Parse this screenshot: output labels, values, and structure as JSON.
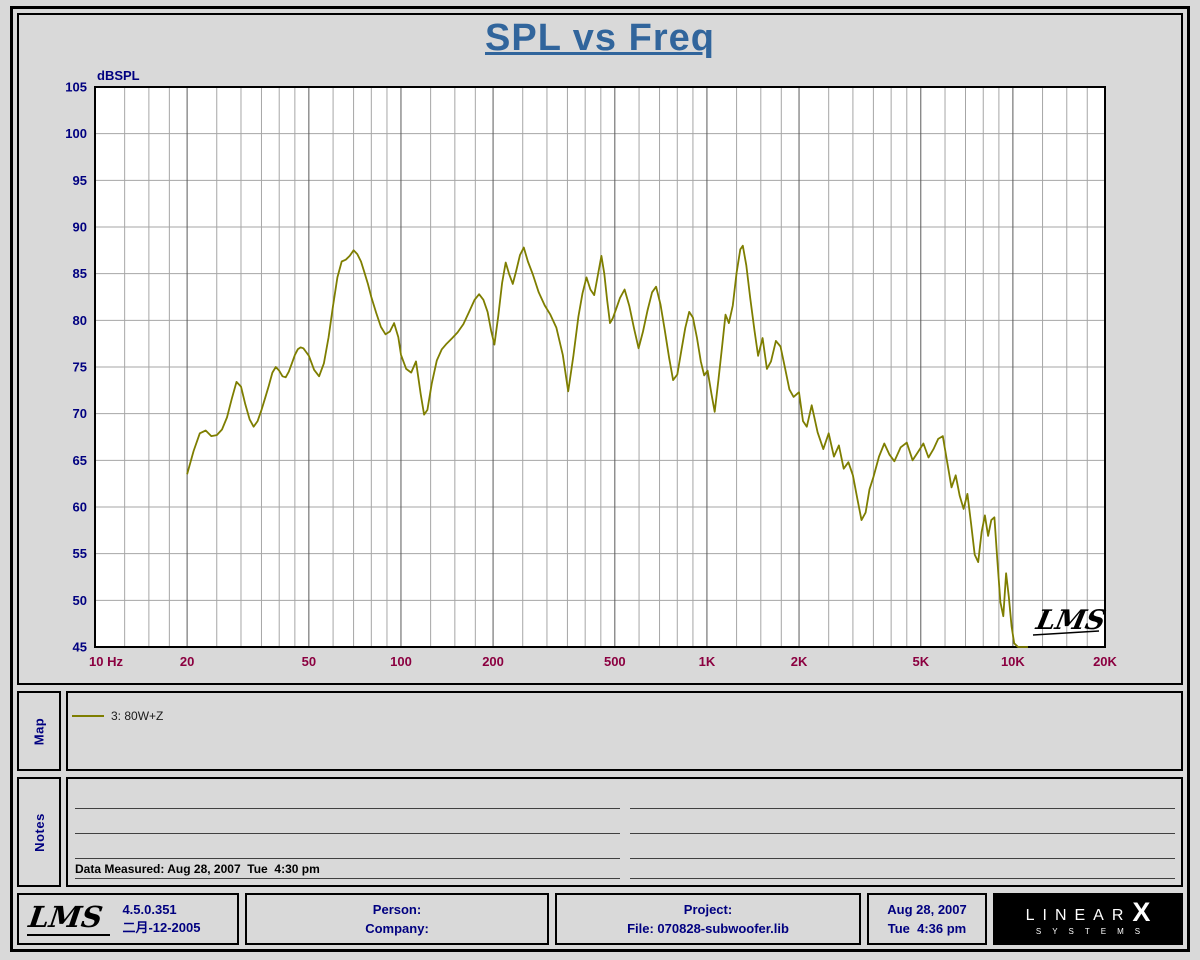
{
  "title": "SPL vs Freq",
  "colors": {
    "background": "#d9d9d9",
    "title_accent": "#31659c",
    "navy_text": "#000080",
    "freq_label": "#8b0040",
    "curve": "#7e7e00"
  },
  "chart_data": {
    "type": "line",
    "title": "SPL vs Freq",
    "ylabel": "dBSPL",
    "xlabel": "Hz",
    "x_scale": "log",
    "xlim": [
      10,
      20000
    ],
    "ylim": [
      45,
      105
    ],
    "y_tick_step": 5,
    "grid": "on",
    "legend_position": "map-panel-below",
    "watermark": "LMS",
    "y_ticks": [
      105,
      100,
      95,
      90,
      85,
      80,
      75,
      70,
      65,
      60,
      55,
      50,
      45
    ],
    "x_ticks": [
      {
        "f": 10,
        "label": "10 Hz"
      },
      {
        "f": 20,
        "label": "20"
      },
      {
        "f": 50,
        "label": "50"
      },
      {
        "f": 100,
        "label": "100"
      },
      {
        "f": 200,
        "label": "200"
      },
      {
        "f": 500,
        "label": "500"
      },
      {
        "f": 1000,
        "label": "1K"
      },
      {
        "f": 2000,
        "label": "2K"
      },
      {
        "f": 5000,
        "label": "5K"
      },
      {
        "f": 10000,
        "label": "10K"
      },
      {
        "f": 20000,
        "label": "20K"
      }
    ],
    "grid_multipliers": [
      1,
      1.25,
      1.5,
      1.75,
      2,
      2.5,
      3,
      3.5,
      4,
      4.5,
      5,
      6,
      7,
      8,
      9
    ],
    "colors": {
      "grid_minor": "#a6a6a6",
      "grid_major": "#5a5a5a",
      "plot_border": "#000000",
      "plot_bg": "#ffffff"
    },
    "series": [
      {
        "name": "3: 80W+Z",
        "color": "#7e7e00",
        "points": [
          [
            20,
            63.5
          ],
          [
            21,
            66
          ],
          [
            22,
            67.9
          ],
          [
            23,
            68.2
          ],
          [
            24,
            67.6
          ],
          [
            25,
            67.7
          ],
          [
            26,
            68.3
          ],
          [
            27,
            69.6
          ],
          [
            28,
            71.6
          ],
          [
            29,
            73.4
          ],
          [
            30,
            72.9
          ],
          [
            31,
            71
          ],
          [
            32,
            69.4
          ],
          [
            33,
            68.6
          ],
          [
            34,
            69.2
          ],
          [
            35,
            70.4
          ],
          [
            36,
            71.7
          ],
          [
            37,
            73
          ],
          [
            38,
            74.4
          ],
          [
            39,
            75
          ],
          [
            40,
            74.6
          ],
          [
            41,
            74
          ],
          [
            42,
            73.9
          ],
          [
            43,
            74.5
          ],
          [
            44,
            75.4
          ],
          [
            45,
            76.3
          ],
          [
            46,
            76.9
          ],
          [
            47,
            77.1
          ],
          [
            48,
            77
          ],
          [
            49,
            76.6
          ],
          [
            50,
            76.2
          ],
          [
            52,
            74.7
          ],
          [
            54,
            74
          ],
          [
            56,
            75.4
          ],
          [
            58,
            78.2
          ],
          [
            60,
            81.6
          ],
          [
            62,
            84.6
          ],
          [
            64,
            86.3
          ],
          [
            66,
            86.5
          ],
          [
            68,
            86.9
          ],
          [
            70,
            87.5
          ],
          [
            72,
            87.1
          ],
          [
            74,
            86.3
          ],
          [
            76,
            85.1
          ],
          [
            78,
            83.9
          ],
          [
            80,
            82.5
          ],
          [
            83,
            80.8
          ],
          [
            86,
            79.3
          ],
          [
            89,
            78.5
          ],
          [
            92,
            78.8
          ],
          [
            95,
            79.7
          ],
          [
            98,
            78.2
          ],
          [
            100,
            76.3
          ],
          [
            104,
            74.8
          ],
          [
            108,
            74.4
          ],
          [
            112,
            75.6
          ],
          [
            116,
            72.1
          ],
          [
            119,
            69.9
          ],
          [
            122,
            70.4
          ],
          [
            126,
            73.2
          ],
          [
            131,
            75.7
          ],
          [
            136,
            76.9
          ],
          [
            141,
            77.5
          ],
          [
            147,
            78.1
          ],
          [
            153,
            78.7
          ],
          [
            160,
            79.6
          ],
          [
            167,
            80.9
          ],
          [
            174,
            82.2
          ],
          [
            180,
            82.8
          ],
          [
            186,
            82.2
          ],
          [
            192,
            80.9
          ],
          [
            197,
            78.9
          ],
          [
            202,
            77.4
          ],
          [
            208,
            80.5
          ],
          [
            214,
            84
          ],
          [
            220,
            86.2
          ],
          [
            226,
            84.9
          ],
          [
            232,
            83.9
          ],
          [
            238,
            85.3
          ],
          [
            245,
            87
          ],
          [
            252,
            87.8
          ],
          [
            260,
            86.3
          ],
          [
            270,
            84.9
          ],
          [
            282,
            83
          ],
          [
            295,
            81.6
          ],
          [
            308,
            80.6
          ],
          [
            322,
            79.2
          ],
          [
            338,
            76.3
          ],
          [
            352,
            72.4
          ],
          [
            366,
            76.2
          ],
          [
            380,
            80.4
          ],
          [
            392,
            82.9
          ],
          [
            404,
            84.6
          ],
          [
            416,
            83.3
          ],
          [
            428,
            82.7
          ],
          [
            440,
            84.8
          ],
          [
            452,
            86.9
          ],
          [
            462,
            85
          ],
          [
            472,
            82.1
          ],
          [
            482,
            79.7
          ],
          [
            492,
            80.2
          ],
          [
            505,
            81.2
          ],
          [
            520,
            82.4
          ],
          [
            538,
            83.3
          ],
          [
            558,
            81.5
          ],
          [
            578,
            79.1
          ],
          [
            598,
            77
          ],
          [
            618,
            78.8
          ],
          [
            640,
            81.1
          ],
          [
            662,
            83
          ],
          [
            682,
            83.6
          ],
          [
            705,
            81.7
          ],
          [
            728,
            79
          ],
          [
            752,
            76
          ],
          [
            775,
            73.6
          ],
          [
            800,
            74.2
          ],
          [
            825,
            76.8
          ],
          [
            850,
            79.2
          ],
          [
            875,
            80.9
          ],
          [
            900,
            80.3
          ],
          [
            928,
            78.1
          ],
          [
            955,
            75.6
          ],
          [
            980,
            74.1
          ],
          [
            1005,
            74.6
          ],
          [
            1035,
            72.1
          ],
          [
            1060,
            70.2
          ],
          [
            1090,
            73.6
          ],
          [
            1120,
            77.1
          ],
          [
            1150,
            80.6
          ],
          [
            1180,
            79.7
          ],
          [
            1215,
            81.6
          ],
          [
            1250,
            85.1
          ],
          [
            1285,
            87.6
          ],
          [
            1310,
            88
          ],
          [
            1345,
            85.9
          ],
          [
            1385,
            82.4
          ],
          [
            1430,
            78.9
          ],
          [
            1470,
            76.2
          ],
          [
            1520,
            78.1
          ],
          [
            1570,
            74.8
          ],
          [
            1620,
            75.6
          ],
          [
            1680,
            77.8
          ],
          [
            1740,
            77.2
          ],
          [
            1800,
            74.9
          ],
          [
            1860,
            72.6
          ],
          [
            1920,
            71.8
          ],
          [
            2000,
            72.3
          ],
          [
            2060,
            69.2
          ],
          [
            2120,
            68.6
          ],
          [
            2200,
            70.9
          ],
          [
            2300,
            68
          ],
          [
            2400,
            66.2
          ],
          [
            2500,
            67.9
          ],
          [
            2600,
            65.4
          ],
          [
            2700,
            66.6
          ],
          [
            2800,
            64.1
          ],
          [
            2900,
            64.8
          ],
          [
            3000,
            63.4
          ],
          [
            3100,
            60.9
          ],
          [
            3200,
            58.6
          ],
          [
            3300,
            59.4
          ],
          [
            3400,
            61.9
          ],
          [
            3500,
            63.2
          ],
          [
            3650,
            65.4
          ],
          [
            3800,
            66.8
          ],
          [
            3950,
            65.6
          ],
          [
            4100,
            64.9
          ],
          [
            4300,
            66.4
          ],
          [
            4500,
            66.9
          ],
          [
            4700,
            65
          ],
          [
            4900,
            65.9
          ],
          [
            5100,
            66.8
          ],
          [
            5300,
            65.3
          ],
          [
            5500,
            66.2
          ],
          [
            5700,
            67.3
          ],
          [
            5900,
            67.6
          ],
          [
            6100,
            64.8
          ],
          [
            6300,
            62.1
          ],
          [
            6500,
            63.4
          ],
          [
            6700,
            61.2
          ],
          [
            6900,
            59.8
          ],
          [
            7100,
            61.4
          ],
          [
            7300,
            58.2
          ],
          [
            7500,
            54.9
          ],
          [
            7700,
            54.1
          ],
          [
            7900,
            57.3
          ],
          [
            8100,
            59.1
          ],
          [
            8300,
            56.9
          ],
          [
            8500,
            58.6
          ],
          [
            8700,
            58.9
          ],
          [
            8900,
            54.2
          ],
          [
            9100,
            49.8
          ],
          [
            9300,
            48.3
          ],
          [
            9500,
            52.9
          ],
          [
            9700,
            50.4
          ],
          [
            9900,
            47.2
          ],
          [
            10100,
            45.4
          ],
          [
            10400,
            45
          ],
          [
            10800,
            45
          ],
          [
            11200,
            45
          ]
        ]
      }
    ]
  },
  "map": {
    "label": "Map",
    "legend_label": "3: 80W+Z"
  },
  "notes": {
    "label": "Notes",
    "data_measured": "Data Measured: Aug 28, 2007  Tue  4:30 pm"
  },
  "footer": {
    "logo": "LMS",
    "version": "4.5.0.351",
    "version_date": "二月-12-2005",
    "person_label": "Person:",
    "company_label": "Company:",
    "project_label": "Project:",
    "file_label": "File: 070828-subwoofer.lib",
    "date": "Aug 28, 2007",
    "time": "Tue  4:36 pm",
    "brand_top": "LINEAR",
    "brand_x": "X",
    "brand_bottom": "SYSTEMS"
  }
}
